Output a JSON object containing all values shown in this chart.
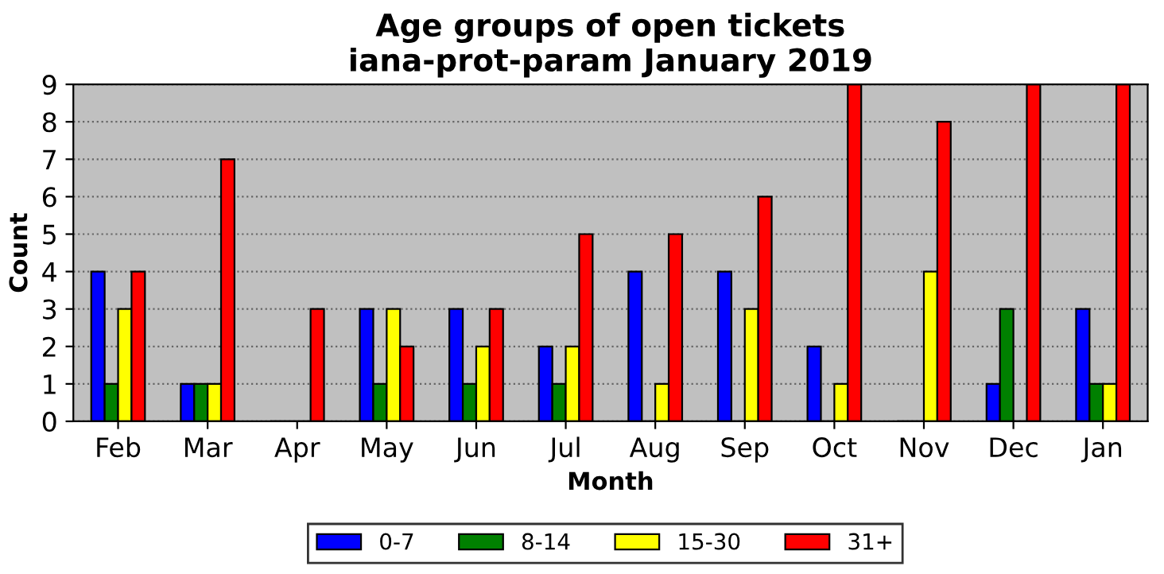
{
  "chart_data": {
    "type": "bar",
    "title": "Age groups of open tickets\niana-prot-param January 2019",
    "xlabel": "Month",
    "ylabel": "Count",
    "categories": [
      "Feb",
      "Mar",
      "Apr",
      "May",
      "Jun",
      "Jul",
      "Aug",
      "Sep",
      "Oct",
      "Nov",
      "Dec",
      "Jan"
    ],
    "series": [
      {
        "name": "0-7",
        "color": "#0000ff",
        "values": [
          4,
          1,
          0,
          3,
          3,
          2,
          4,
          4,
          2,
          0,
          1,
          3
        ]
      },
      {
        "name": "8-14",
        "color": "#008000",
        "values": [
          1,
          1,
          0,
          1,
          1,
          1,
          0,
          0,
          0,
          0,
          3,
          1
        ]
      },
      {
        "name": "15-30",
        "color": "#ffff00",
        "values": [
          3,
          1,
          0,
          3,
          2,
          2,
          1,
          3,
          1,
          4,
          0,
          1
        ]
      },
      {
        "name": "31+",
        "color": "#ff0000",
        "values": [
          4,
          7,
          3,
          2,
          3,
          5,
          5,
          6,
          9,
          8,
          9,
          9
        ]
      }
    ],
    "ylim": [
      0,
      9
    ],
    "yticks": [
      0,
      1,
      2,
      3,
      4,
      5,
      6,
      7,
      8,
      9
    ],
    "grid": "y",
    "legend": "bottom"
  }
}
